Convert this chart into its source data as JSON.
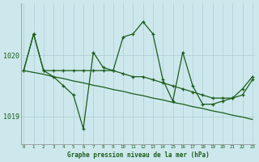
{
  "title": "Graphe pression niveau de la mer (hPa)",
  "background_color": "#cde8ec",
  "grid_color": "#aacdd4",
  "line_color": "#1a5c1a",
  "label_color": "#1a5c1a",
  "spine_color": "#888888",
  "x_ticks": [
    0,
    1,
    2,
    3,
    4,
    5,
    6,
    7,
    8,
    9,
    10,
    11,
    12,
    13,
    14,
    15,
    16,
    17,
    18,
    19,
    20,
    21,
    22,
    23
  ],
  "y_ticks": [
    1019,
    1020
  ],
  "ylim": [
    1018.55,
    1020.85
  ],
  "xlim": [
    -0.3,
    23.3
  ],
  "series1_jagged": {
    "x": [
      0,
      1,
      2,
      3,
      4,
      5,
      6,
      7,
      8,
      9,
      10,
      11,
      12,
      13,
      14,
      15,
      16,
      17,
      18,
      19,
      20,
      21,
      22,
      23
    ],
    "y": [
      1019.75,
      1020.35,
      1019.75,
      1019.65,
      1019.5,
      1019.35,
      1018.8,
      1020.05,
      1019.8,
      1019.75,
      1020.3,
      1020.35,
      1020.55,
      1020.35,
      1019.6,
      1019.25,
      1020.05,
      1019.5,
      1019.2,
      1019.2,
      1019.25,
      1019.3,
      1019.45,
      1019.65
    ]
  },
  "series2_smooth": {
    "x": [
      0,
      1,
      2,
      3,
      4,
      5,
      6,
      7,
      8,
      9,
      10,
      11,
      12,
      13,
      14,
      15,
      16,
      17,
      18,
      19,
      20,
      21,
      22,
      23
    ],
    "y": [
      1019.75,
      1020.35,
      1019.75,
      1019.75,
      1019.75,
      1019.75,
      1019.75,
      1019.75,
      1019.75,
      1019.75,
      1019.7,
      1019.65,
      1019.65,
      1019.6,
      1019.55,
      1019.5,
      1019.45,
      1019.4,
      1019.35,
      1019.3,
      1019.3,
      1019.3,
      1019.35,
      1019.6
    ]
  },
  "series3_trend": {
    "x": [
      0,
      1,
      2,
      3,
      4,
      5,
      6,
      7,
      8,
      9,
      10,
      11,
      12,
      13,
      14,
      15,
      16,
      17,
      18,
      19,
      20,
      21,
      22,
      23
    ],
    "y": [
      1019.75,
      1019.72,
      1019.69,
      1019.65,
      1019.62,
      1019.58,
      1019.55,
      1019.51,
      1019.48,
      1019.44,
      1019.41,
      1019.37,
      1019.34,
      1019.3,
      1019.27,
      1019.23,
      1019.2,
      1019.16,
      1019.13,
      1019.09,
      1019.06,
      1019.02,
      1018.99,
      1018.95
    ]
  }
}
